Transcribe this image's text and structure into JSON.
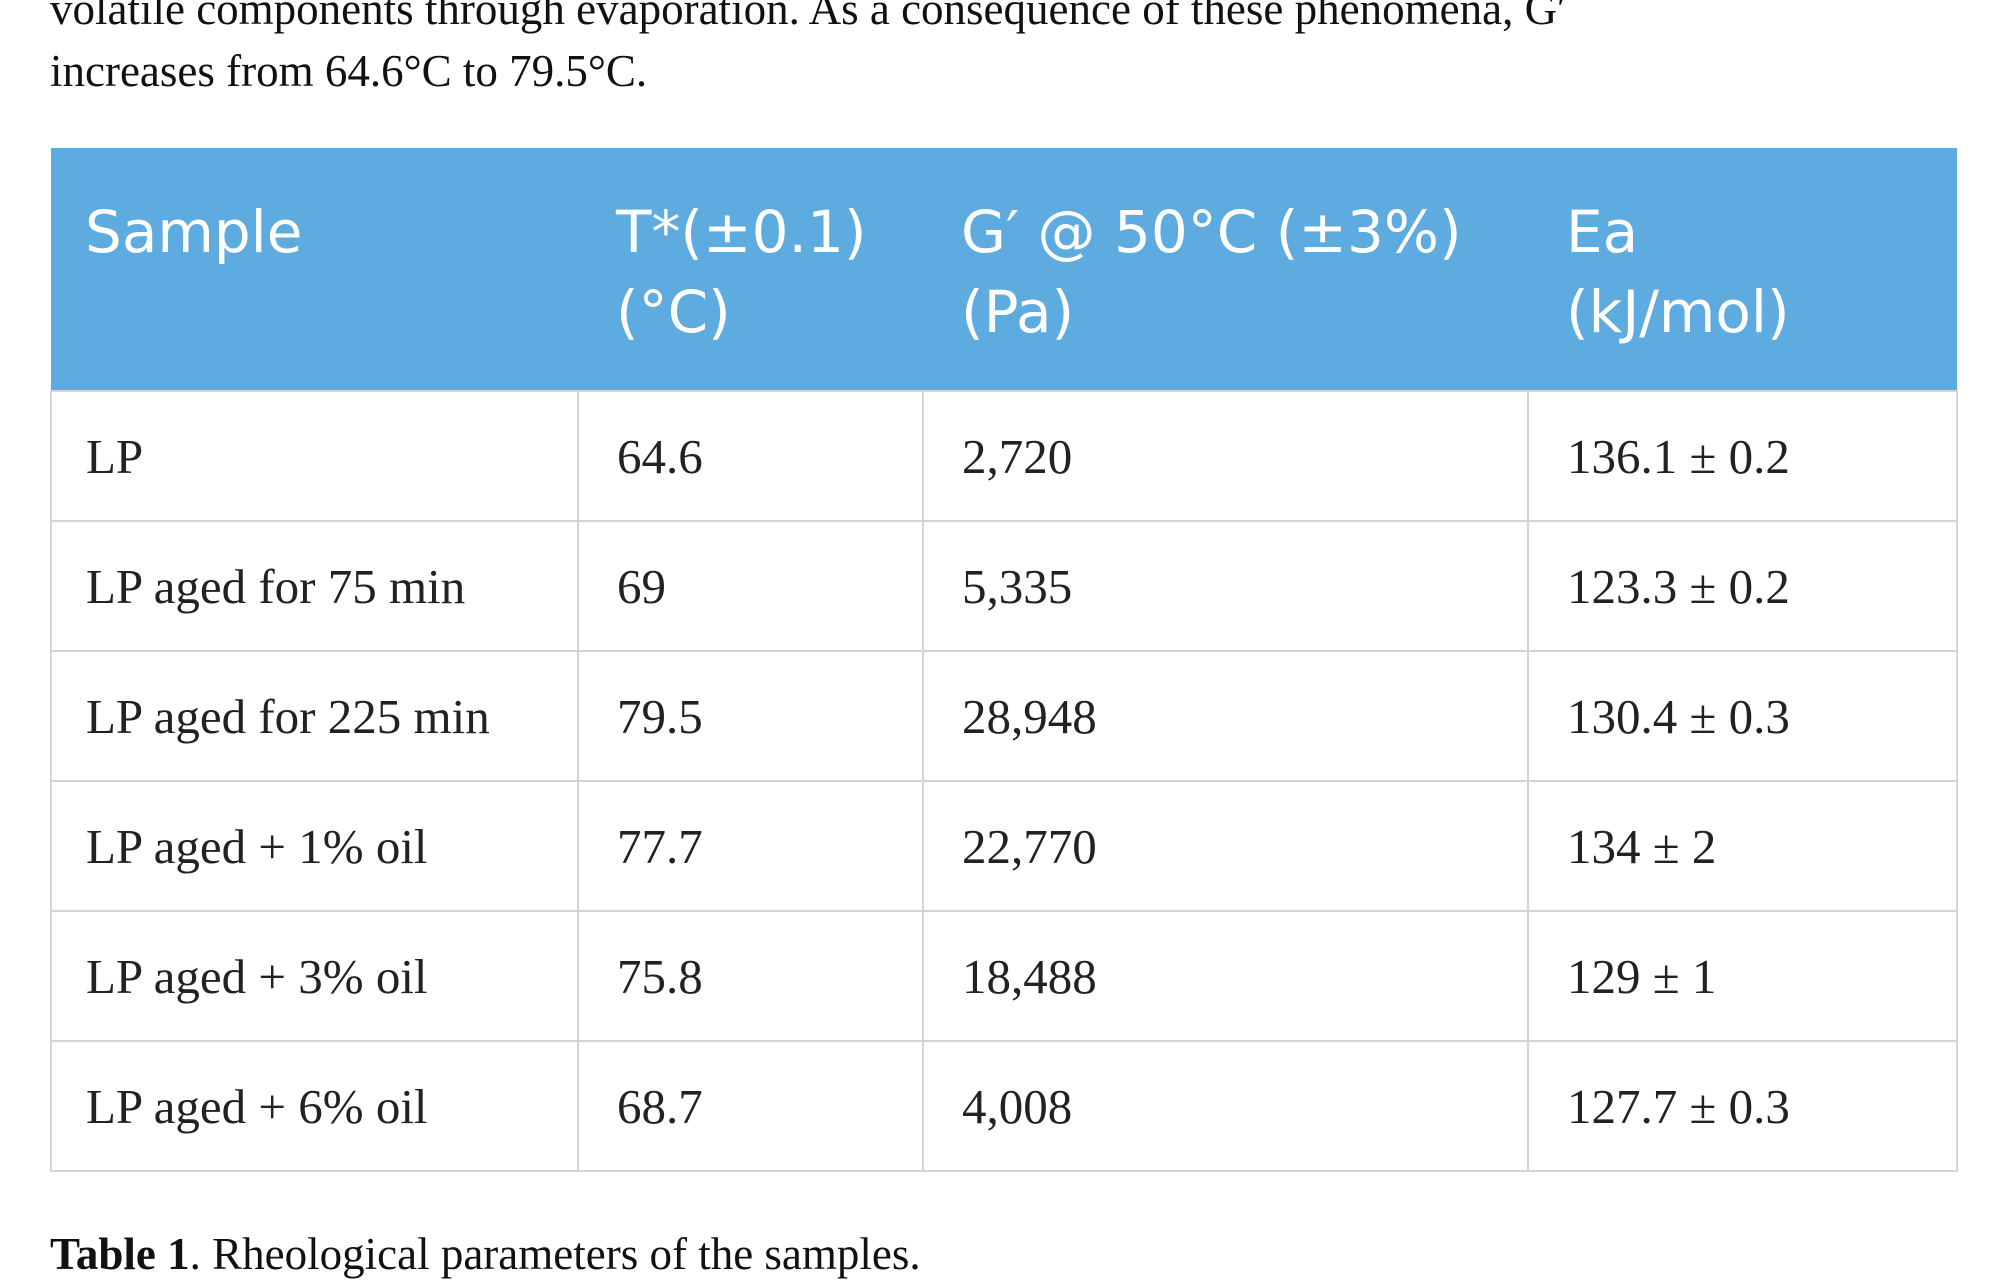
{
  "intro": {
    "line1": "volatile components through evaporation. As a consequence of these phenomena, G′",
    "line2": "increases from 64.6°C to 79.5°C."
  },
  "table": {
    "headers": [
      {
        "line1": "Sample",
        "line2": ""
      },
      {
        "line1": "T*(±0.1)",
        "line2": "(°C)"
      },
      {
        "line1": "G′ @ 50°C (±3%)",
        "line2": "(Pa)"
      },
      {
        "line1": "Ea",
        "line2": "(kJ/mol)"
      }
    ],
    "rows": [
      [
        "LP",
        "64.6",
        "2,720",
        "136.1 ± 0.2"
      ],
      [
        "LP aged for 75 min",
        "69",
        "5,335",
        "123.3 ± 0.2"
      ],
      [
        "LP aged for 225 min",
        "79.5",
        "28,948",
        "130.4 ± 0.3"
      ],
      [
        "LP aged + 1% oil",
        "77.7",
        "22,770",
        "134 ± 2"
      ],
      [
        "LP aged + 3% oil",
        "75.8",
        "18,488",
        "129 ± 1"
      ],
      [
        "LP aged + 6% oil",
        "68.7",
        "4,008",
        "127.7 ± 0.3"
      ]
    ],
    "header_color": "#5eabe0"
  },
  "caption": {
    "label": "Table 1",
    "text": ". Rheological parameters of the samples."
  }
}
